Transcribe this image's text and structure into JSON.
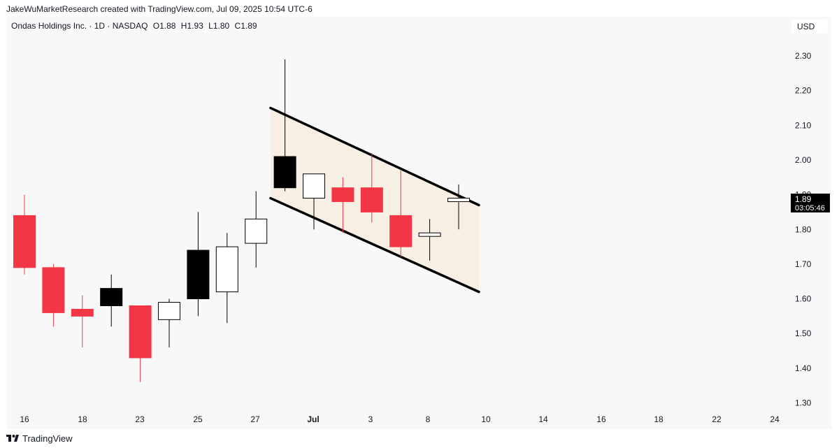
{
  "credit_line": "JakeWuMarketResearch created with TradingView.com, Jul 09, 2025 10:54 UTC-6",
  "legend": {
    "symbol": "Ondas Holdings Inc. · 1D · NASDAQ",
    "open": "O1.88",
    "high": "H1.93",
    "low": "L1.80",
    "close": "C1.89"
  },
  "currency": "USD",
  "price_tag": {
    "price": "1.89",
    "countdown": "03:05:46"
  },
  "footer": {
    "brand": "TradingView"
  },
  "colors": {
    "down": "#f23645",
    "up_filled": "#000000",
    "up_hollow": "#ffffff",
    "channel_fill": "#f7efe4",
    "channel_line": "#000000"
  },
  "chart_data": {
    "type": "candlestick",
    "ylim": [
      1.27,
      2.35
    ],
    "y_ticks": [
      "2.30",
      "2.20",
      "2.10",
      "2.00",
      "1.90",
      "1.80",
      "1.70",
      "1.60",
      "1.50",
      "1.40",
      "1.30"
    ],
    "x_ticks": [
      "16",
      "18",
      "23",
      "25",
      "27",
      "Jul",
      "3",
      "8",
      "10",
      "14",
      "16",
      "18",
      "22",
      "24"
    ],
    "candles": [
      {
        "open": 1.84,
        "high": 1.9,
        "low": 1.67,
        "close": 1.69,
        "style": "down"
      },
      {
        "open": 1.69,
        "high": 1.7,
        "low": 1.52,
        "close": 1.56,
        "style": "down"
      },
      {
        "open": 1.57,
        "high": 1.61,
        "low": 1.46,
        "close": 1.55,
        "style": "down"
      },
      {
        "open": 1.58,
        "high": 1.67,
        "low": 1.52,
        "close": 1.63,
        "style": "up_filled"
      },
      {
        "open": 1.58,
        "high": 1.58,
        "low": 1.36,
        "close": 1.43,
        "style": "down"
      },
      {
        "open": 1.54,
        "high": 1.6,
        "low": 1.46,
        "close": 1.59,
        "style": "up_hollow"
      },
      {
        "open": 1.6,
        "high": 1.85,
        "low": 1.55,
        "close": 1.74,
        "style": "up_filled"
      },
      {
        "open": 1.62,
        "high": 1.79,
        "low": 1.53,
        "close": 1.75,
        "style": "up_hollow"
      },
      {
        "open": 1.76,
        "high": 1.91,
        "low": 1.69,
        "close": 1.83,
        "style": "up_hollow"
      },
      {
        "open": 1.92,
        "high": 2.29,
        "low": 1.91,
        "close": 2.01,
        "style": "up_filled"
      },
      {
        "open": 1.89,
        "high": 1.96,
        "low": 1.8,
        "close": 1.96,
        "style": "up_hollow"
      },
      {
        "open": 1.92,
        "high": 1.95,
        "low": 1.79,
        "close": 1.88,
        "style": "down"
      },
      {
        "open": 1.92,
        "high": 2.02,
        "low": 1.82,
        "close": 1.85,
        "style": "down"
      },
      {
        "open": 1.84,
        "high": 1.97,
        "low": 1.72,
        "close": 1.75,
        "style": "down"
      },
      {
        "open": 1.78,
        "high": 1.83,
        "low": 1.71,
        "close": 1.79,
        "style": "up_hollow"
      },
      {
        "open": 1.88,
        "high": 1.93,
        "low": 1.8,
        "close": 1.89,
        "style": "up_hollow"
      }
    ],
    "channel": {
      "upper": [
        [
          8.5,
          2.15
        ],
        [
          15.7,
          1.87
        ]
      ],
      "lower": [
        [
          8.5,
          1.89
        ],
        [
          15.7,
          1.62
        ]
      ]
    }
  }
}
